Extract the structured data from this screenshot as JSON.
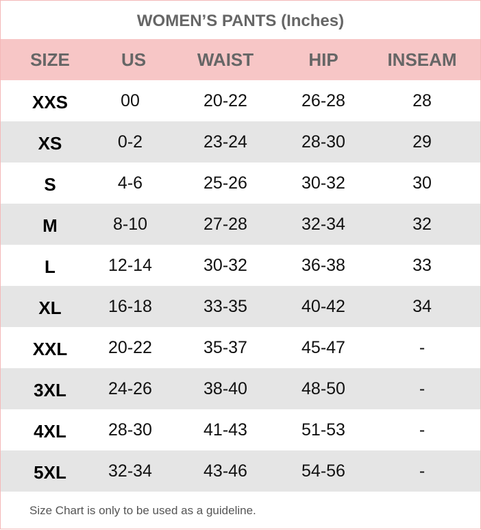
{
  "title": "WOMEN’S PANTS (Inches)",
  "columns": [
    "SIZE",
    "US",
    "WAIST",
    "HIP",
    "INSEAM"
  ],
  "rows": [
    [
      "XXS",
      "00",
      "20-22",
      "26-28",
      "28"
    ],
    [
      "XS",
      "0-2",
      "23-24",
      "28-30",
      "29"
    ],
    [
      "S",
      "4-6",
      "25-26",
      "30-32",
      "30"
    ],
    [
      "M",
      "8-10",
      "27-28",
      "32-34",
      "32"
    ],
    [
      "L",
      "12-14",
      "30-32",
      "36-38",
      "33"
    ],
    [
      "XL",
      "16-18",
      "33-35",
      "40-42",
      "34"
    ],
    [
      "XXL",
      "20-22",
      "35-37",
      "45-47",
      "-"
    ],
    [
      "3XL",
      "24-26",
      "38-40",
      "48-50",
      "-"
    ],
    [
      "4XL",
      "28-30",
      "41-43",
      "51-53",
      "-"
    ],
    [
      "5XL",
      "32-34",
      "43-46",
      "54-56",
      "-"
    ]
  ],
  "footer": "Size Chart is only to be used as a guideline.",
  "colors": {
    "header_bg": "#f7c6c6",
    "stripe_bg": "#e5e5e5",
    "border": "#f4b8b8"
  }
}
